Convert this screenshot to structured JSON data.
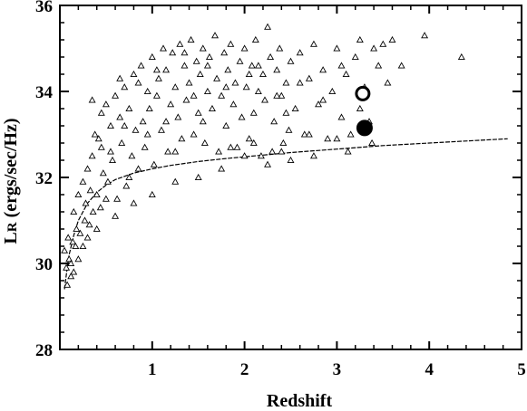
{
  "chart_data": {
    "type": "scatter",
    "title": "",
    "xlabel": "Redshift",
    "ylabel_main": "L",
    "ylabel_sub": "R",
    "ylabel_rest": " (ergs/sec/Hz)",
    "xlim": [
      0,
      5
    ],
    "ylim": [
      28,
      36
    ],
    "x_ticks": [
      1,
      2,
      3,
      4,
      5
    ],
    "x_tick_labels": [
      "1",
      "2",
      "3",
      "4",
      "5"
    ],
    "y_ticks": [
      28,
      30,
      32,
      34,
      36
    ],
    "y_tick_labels": [
      "28",
      "30",
      "32",
      "34",
      "36"
    ],
    "grid": false,
    "series": [
      {
        "marker": "triangle-open",
        "points": [
          [
            0.05,
            30.3
          ],
          [
            0.07,
            29.9
          ],
          [
            0.09,
            30.6
          ],
          [
            0.1,
            30.1
          ],
          [
            0.12,
            30.0
          ],
          [
            0.14,
            30.5
          ],
          [
            0.15,
            31.2
          ],
          [
            0.17,
            30.4
          ],
          [
            0.18,
            30.8
          ],
          [
            0.2,
            31.6
          ],
          [
            0.22,
            30.7
          ],
          [
            0.25,
            31.9
          ],
          [
            0.27,
            31.0
          ],
          [
            0.28,
            31.4
          ],
          [
            0.3,
            32.2
          ],
          [
            0.32,
            30.9
          ],
          [
            0.33,
            31.7
          ],
          [
            0.35,
            32.5
          ],
          [
            0.36,
            31.2
          ],
          [
            0.38,
            33.0
          ],
          [
            0.4,
            31.6
          ],
          [
            0.42,
            32.9
          ],
          [
            0.44,
            31.3
          ],
          [
            0.45,
            33.5
          ],
          [
            0.47,
            32.1
          ],
          [
            0.5,
            33.7
          ],
          [
            0.52,
            31.9
          ],
          [
            0.55,
            33.2
          ],
          [
            0.57,
            32.4
          ],
          [
            0.6,
            33.9
          ],
          [
            0.62,
            31.5
          ],
          [
            0.65,
            33.4
          ],
          [
            0.67,
            32.8
          ],
          [
            0.7,
            34.1
          ],
          [
            0.72,
            31.8
          ],
          [
            0.75,
            33.6
          ],
          [
            0.78,
            32.5
          ],
          [
            0.8,
            34.4
          ],
          [
            0.82,
            33.1
          ],
          [
            0.85,
            32.2
          ],
          [
            0.88,
            34.6
          ],
          [
            0.9,
            33.3
          ],
          [
            0.92,
            32.7
          ],
          [
            0.95,
            34.0
          ],
          [
            0.97,
            33.6
          ],
          [
            1.0,
            34.8
          ],
          [
            1.02,
            32.3
          ],
          [
            1.05,
            33.9
          ],
          [
            1.07,
            34.3
          ],
          [
            1.1,
            33.1
          ],
          [
            1.12,
            35.0
          ],
          [
            1.15,
            34.5
          ],
          [
            1.17,
            32.6
          ],
          [
            1.2,
            33.7
          ],
          [
            1.22,
            34.9
          ],
          [
            1.25,
            34.1
          ],
          [
            1.28,
            33.4
          ],
          [
            1.3,
            35.1
          ],
          [
            1.32,
            32.9
          ],
          [
            1.35,
            34.6
          ],
          [
            1.37,
            33.8
          ],
          [
            1.4,
            34.2
          ],
          [
            1.42,
            35.2
          ],
          [
            1.45,
            33.0
          ],
          [
            1.48,
            34.7
          ],
          [
            1.5,
            33.5
          ],
          [
            1.52,
            34.4
          ],
          [
            1.55,
            35.0
          ],
          [
            1.57,
            32.8
          ],
          [
            1.6,
            34.0
          ],
          [
            1.62,
            34.8
          ],
          [
            1.65,
            33.6
          ],
          [
            1.68,
            35.3
          ],
          [
            1.7,
            34.3
          ],
          [
            1.72,
            32.6
          ],
          [
            1.75,
            33.9
          ],
          [
            1.78,
            34.9
          ],
          [
            1.8,
            33.2
          ],
          [
            1.82,
            34.5
          ],
          [
            1.85,
            35.1
          ],
          [
            1.88,
            33.7
          ],
          [
            1.9,
            34.2
          ],
          [
            1.92,
            32.7
          ],
          [
            1.95,
            34.7
          ],
          [
            1.97,
            33.4
          ],
          [
            2.0,
            35.0
          ],
          [
            2.02,
            34.1
          ],
          [
            2.05,
            32.9
          ],
          [
            2.08,
            34.6
          ],
          [
            2.1,
            33.5
          ],
          [
            2.12,
            35.2
          ],
          [
            2.15,
            34.0
          ],
          [
            2.18,
            32.5
          ],
          [
            2.2,
            34.4
          ],
          [
            2.22,
            33.8
          ],
          [
            2.25,
            35.5
          ],
          [
            2.28,
            34.8
          ],
          [
            2.3,
            32.6
          ],
          [
            2.32,
            33.3
          ],
          [
            2.35,
            34.5
          ],
          [
            2.38,
            35.0
          ],
          [
            2.4,
            33.9
          ],
          [
            2.42,
            32.8
          ],
          [
            2.45,
            34.2
          ],
          [
            2.48,
            33.1
          ],
          [
            2.5,
            34.7
          ],
          [
            2.55,
            33.6
          ],
          [
            2.6,
            34.9
          ],
          [
            2.65,
            33.0
          ],
          [
            2.7,
            34.3
          ],
          [
            2.75,
            35.1
          ],
          [
            2.8,
            33.7
          ],
          [
            2.85,
            34.5
          ],
          [
            2.9,
            32.9
          ],
          [
            2.95,
            34.0
          ],
          [
            3.0,
            35.0
          ],
          [
            3.05,
            33.4
          ],
          [
            3.1,
            34.4
          ],
          [
            3.15,
            33.0
          ],
          [
            3.2,
            34.8
          ],
          [
            3.25,
            35.2
          ],
          [
            3.3,
            34.1
          ],
          [
            3.35,
            33.3
          ],
          [
            3.4,
            35.0
          ],
          [
            3.45,
            34.6
          ],
          [
            3.5,
            35.1
          ],
          [
            3.55,
            34.2
          ],
          [
            3.6,
            35.2
          ],
          [
            3.7,
            34.6
          ],
          [
            3.95,
            35.3
          ],
          [
            4.35,
            34.8
          ],
          [
            3.38,
            32.8
          ],
          [
            3.12,
            32.6
          ],
          [
            2.75,
            32.5
          ],
          [
            2.5,
            32.4
          ],
          [
            2.25,
            32.3
          ],
          [
            2.0,
            32.5
          ],
          [
            1.75,
            32.2
          ],
          [
            1.5,
            32.0
          ],
          [
            1.25,
            31.9
          ],
          [
            1.0,
            31.6
          ],
          [
            0.8,
            31.4
          ],
          [
            0.6,
            31.1
          ],
          [
            0.4,
            30.8
          ],
          [
            0.25,
            30.4
          ],
          [
            0.15,
            29.8
          ],
          [
            0.08,
            29.5
          ],
          [
            0.12,
            29.7
          ],
          [
            0.2,
            30.1
          ],
          [
            0.3,
            30.6
          ],
          [
            0.55,
            32.6
          ],
          [
            0.65,
            34.3
          ],
          [
            0.85,
            34.2
          ],
          [
            1.05,
            34.5
          ],
          [
            1.15,
            33.3
          ],
          [
            1.35,
            34.9
          ],
          [
            1.45,
            33.9
          ],
          [
            1.6,
            34.6
          ],
          [
            1.8,
            34.1
          ],
          [
            2.05,
            34.4
          ],
          [
            2.15,
            34.6
          ],
          [
            2.35,
            33.9
          ],
          [
            2.45,
            33.5
          ],
          [
            2.6,
            34.2
          ],
          [
            2.85,
            33.8
          ],
          [
            3.05,
            34.6
          ],
          [
            3.25,
            33.6
          ],
          [
            0.75,
            32.0
          ],
          [
            0.95,
            33.0
          ],
          [
            1.25,
            32.6
          ],
          [
            1.55,
            33.3
          ],
          [
            1.85,
            32.7
          ],
          [
            2.1,
            32.8
          ],
          [
            2.4,
            32.6
          ],
          [
            2.7,
            33.0
          ],
          [
            3.0,
            32.9
          ],
          [
            0.35,
            33.8
          ],
          [
            0.45,
            32.7
          ],
          [
            0.5,
            31.5
          ],
          [
            0.7,
            33.2
          ]
        ]
      },
      {
        "name": "",
        "marker": "circle-open",
        "points": [
          [
            3.28,
            33.95
          ]
        ]
      },
      {
        "name": "",
        "marker": "circle-filled",
        "points": [
          [
            3.3,
            33.15
          ]
        ]
      }
    ],
    "limit_curve": {
      "x": [
        0.05,
        0.08,
        0.1,
        0.15,
        0.2,
        0.3,
        0.4,
        0.5,
        0.6,
        0.8,
        1.0,
        1.2,
        1.5,
        1.8,
        2.0,
        2.5,
        3.0,
        3.5,
        4.0,
        4.5,
        4.85
      ],
      "y": [
        29.4,
        29.9,
        30.2,
        30.65,
        31.0,
        31.4,
        31.65,
        31.82,
        31.95,
        32.1,
        32.2,
        32.28,
        32.37,
        32.44,
        32.48,
        32.58,
        32.66,
        32.74,
        32.8,
        32.86,
        32.9
      ]
    }
  }
}
